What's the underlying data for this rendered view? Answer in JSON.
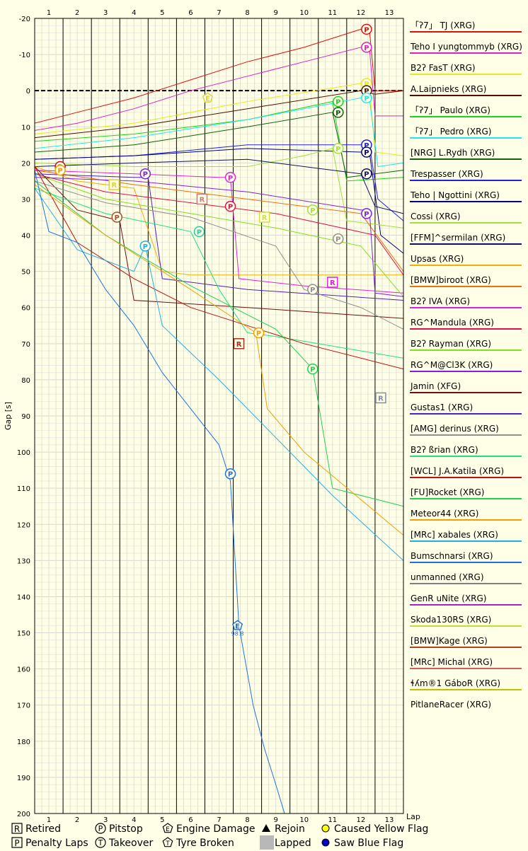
{
  "chart_data": {
    "type": "line",
    "ylabel": "Gap [s]",
    "xlabel": "Lap",
    "x_ticks": [
      1,
      2,
      3,
      4,
      5,
      6,
      7,
      8,
      9,
      10,
      11,
      12,
      13
    ],
    "ylim": [
      -20,
      200
    ],
    "y_ticks": [
      -20,
      -10,
      0,
      10,
      20,
      30,
      40,
      50,
      60,
      70,
      80,
      90,
      100,
      110,
      120,
      130,
      140,
      150,
      160,
      170,
      180,
      190,
      200
    ],
    "reference_line": 0,
    "grid": true,
    "series": [
      {
        "name": "「ʔ7」 TJ (XRG)",
        "color": "#e01010",
        "x": [
          0.5,
          2,
          4,
          6,
          8,
          10,
          12,
          12.3,
          12.5,
          13.5
        ],
        "y": [
          9,
          6,
          2,
          -3,
          -8,
          -12,
          -17,
          -17,
          0,
          0
        ]
      },
      {
        "name": "Teho I yungtommyb (XRG)",
        "color": "#e020c0",
        "x": [
          0.5,
          2,
          4,
          6,
          8,
          10,
          12,
          12.3,
          12.5,
          13.5
        ],
        "y": [
          11,
          9,
          5,
          0,
          -4,
          -8,
          -12,
          -12,
          7,
          7
        ]
      },
      {
        "name": "B2ʔ FasT (XRG)",
        "color": "#e8e820",
        "x": [
          0.5,
          4,
          8,
          12,
          12.3,
          12.5,
          13.5
        ],
        "y": [
          12,
          9,
          3,
          -2,
          -2,
          17,
          18
        ]
      },
      {
        "name": "A.Laipnieks (XRG)",
        "color": "#501000",
        "x": [
          0.5,
          4,
          8,
          12,
          12.5,
          13.5
        ],
        "y": [
          13,
          10,
          5,
          0,
          1,
          0
        ]
      },
      {
        "name": "「ʔ7」 Paulo (XRG)",
        "color": "#20d020",
        "x": [
          0.5,
          4,
          8,
          11,
          11.5,
          13.5
        ],
        "y": [
          14,
          12,
          8,
          3,
          25,
          24
        ]
      },
      {
        "name": "「ʔ7」 Pedro (XRG)",
        "color": "#20e8e8",
        "x": [
          0.5,
          4,
          8,
          12,
          12.3,
          12.6,
          13.5
        ],
        "y": [
          16,
          13,
          8,
          2,
          2,
          21,
          20
        ]
      },
      {
        "name": "[NRG] L.Rydh (XRG)",
        "color": "#106010",
        "x": [
          0.5,
          4,
          8,
          11,
          11.5,
          13.5
        ],
        "y": [
          17,
          15,
          10,
          6,
          24,
          22
        ]
      },
      {
        "name": "Trespasser (XRG)",
        "color": "#2020e0",
        "x": [
          0.5,
          4,
          8,
          12,
          12.3,
          12.6,
          13.5
        ],
        "y": [
          19,
          18,
          15,
          15,
          15,
          30,
          36
        ]
      },
      {
        "name": "Teho | Ngottini (XRG)",
        "color": "#000080",
        "x": [
          0.5,
          4,
          8,
          12,
          12.3,
          12.7,
          13.5
        ],
        "y": [
          19,
          18,
          16,
          17,
          17,
          40,
          45
        ]
      },
      {
        "name": "Cossi (XRG)",
        "color": "#a0e040",
        "x": [
          0.5,
          4,
          8,
          10,
          11,
          11.5,
          13.5
        ],
        "y": [
          20,
          21,
          21,
          18,
          16,
          36,
          38
        ]
      },
      {
        "name": "[FFM]^sermilan (XRG)",
        "color": "#101060",
        "x": [
          0.5,
          4,
          8,
          12,
          12.5,
          13.5
        ],
        "y": [
          21,
          20,
          19,
          23,
          32,
          34
        ]
      },
      {
        "name": "Upsas (XRG)",
        "color": "#f0b000",
        "x": [
          0.5,
          2,
          4,
          5,
          6,
          8,
          13.5
        ],
        "y": [
          21,
          25,
          27,
          50,
          51,
          51,
          51
        ]
      },
      {
        "name": "[BMW]biroot (XRG)",
        "color": "#f07010",
        "x": [
          0.5,
          4,
          8,
          12,
          13.5
        ],
        "y": [
          22,
          26,
          30,
          34,
          50
        ]
      },
      {
        "name": "B2ʔ IVA (XRG)",
        "color": "#e020e0",
        "x": [
          0.5,
          4,
          7,
          7.4,
          7.7,
          10,
          13.5
        ],
        "y": [
          22,
          23,
          24,
          24,
          52,
          54,
          56
        ]
      },
      {
        "name": "RG^Mandula (XRG)",
        "color": "#e01050",
        "x": [
          0.5,
          3,
          6,
          9,
          12.5,
          13.5
        ],
        "y": [
          23,
          28,
          31,
          34,
          40,
          51
        ]
      },
      {
        "name": "B2ʔ Rayman (XRG)",
        "color": "#80e020",
        "x": [
          0.5,
          3,
          6,
          9,
          12,
          13.5
        ],
        "y": [
          23,
          30,
          34,
          38,
          43,
          57
        ]
      },
      {
        "name": "RG^M@Cl3K (XRG)",
        "color": "#8020e0",
        "x": [
          0.5,
          4,
          8,
          12,
          12.3,
          12.5,
          13.5
        ],
        "y": [
          24,
          25,
          28,
          33,
          33,
          56,
          57
        ]
      },
      {
        "name": "Jamin (XFG)",
        "color": "#701010",
        "x": [
          0.5,
          2,
          3,
          3.5,
          4,
          8,
          13.5
        ],
        "y": [
          21,
          33,
          35,
          36,
          58,
          60,
          63
        ]
      },
      {
        "name": "Gustas1 (XRG)",
        "color": "#5020c0",
        "x": [
          0.5,
          4,
          4.5,
          5,
          8,
          13.5
        ],
        "y": [
          23,
          24,
          24,
          52,
          55,
          58
        ]
      },
      {
        "name": "[AMG] derinus (XRG)",
        "color": "#909090",
        "x": [
          0.5,
          3,
          6,
          9,
          10,
          12,
          13.5
        ],
        "y": [
          25,
          31,
          35,
          43,
          55,
          60,
          66
        ]
      },
      {
        "name": "B2ʔ ßrian (XRG)",
        "color": "#20e080",
        "x": [
          0.5,
          3,
          6,
          7,
          8,
          9,
          13.5
        ],
        "y": [
          27,
          34,
          39,
          55,
          67,
          68,
          74
        ]
      },
      {
        "name": "[WCL] J.A.Katila (XRG)",
        "color": "#c01010",
        "x": [
          0.5,
          2,
          4,
          6,
          8,
          10,
          13.5
        ],
        "y": [
          21,
          42,
          52,
          60,
          65,
          70,
          77
        ]
      },
      {
        "name": "[FU]Rocket (XRG)",
        "color": "#20d050",
        "x": [
          0.5,
          3,
          6,
          9,
          10.3,
          11,
          13.5
        ],
        "y": [
          25,
          40,
          54,
          66,
          77,
          110,
          115
        ]
      },
      {
        "name": "Meteor44 (XRG)",
        "color": "#f0a000",
        "x": [
          0.5,
          3,
          6,
          8.3,
          8.7,
          10,
          13.5
        ],
        "y": [
          26,
          40,
          55,
          67,
          88,
          100,
          123
        ]
      },
      {
        "name": "[MRc] xabales (XRG)",
        "color": "#20b0e0",
        "x": [
          0.5,
          2,
          4,
          4.4,
          5,
          7,
          9,
          11,
          13.5
        ],
        "y": [
          27,
          44,
          50,
          43,
          65,
          80,
          96,
          112,
          130
        ]
      },
      {
        "name": "Bumschnarsi (XRG)",
        "color": "#2070e0",
        "x": [
          0.5,
          1,
          2,
          3,
          4,
          5,
          6,
          7,
          7.4,
          7.7,
          8.2,
          8.6,
          9,
          9.5
        ],
        "y": [
          22,
          39,
          42,
          55,
          65,
          78,
          88,
          98,
          108,
          148,
          170,
          182,
          192,
          205
        ]
      }
    ],
    "legend_extra": [
      "unmanned (XRG)",
      "GenR uNite (XRG)",
      "Skoda130RS (XRG)",
      "[BMW]Kage (XRG)",
      "[MRc] Michal (XRG)",
      "ɬʎm®1 GáboR (XRG)",
      "PitlaneRacer (XRG)"
    ],
    "legend_extra_colors": [
      "#808080",
      "#b020c0",
      "#c0e030",
      "#b04020",
      "#d06060",
      "#c0c000",
      ""
    ],
    "markers": [
      {
        "type": "P",
        "x": 12.2,
        "y": -17,
        "color": "#e01010"
      },
      {
        "type": "P",
        "x": 12.2,
        "y": -12,
        "color": "#e020c0"
      },
      {
        "type": "P",
        "x": 12.2,
        "y": -2,
        "color": "#e8e820"
      },
      {
        "type": "P",
        "x": 12.2,
        "y": 0,
        "color": "#501000"
      },
      {
        "type": "P",
        "x": 12.2,
        "y": 2,
        "color": "#20e8e8"
      },
      {
        "type": "P",
        "x": 11.2,
        "y": 3,
        "color": "#20d020"
      },
      {
        "type": "P",
        "x": 11.2,
        "y": 6,
        "color": "#106010"
      },
      {
        "type": "P",
        "x": 11.2,
        "y": 16,
        "color": "#a0e040"
      },
      {
        "type": "P",
        "x": 12.2,
        "y": 15,
        "color": "#2020e0"
      },
      {
        "type": "P",
        "x": 12.2,
        "y": 17,
        "color": "#000080"
      },
      {
        "type": "P",
        "x": 12.2,
        "y": 23,
        "color": "#101060"
      },
      {
        "type": "P",
        "x": 12.2,
        "y": 34,
        "color": "#8020e0"
      },
      {
        "type": "P",
        "x": 11.2,
        "y": 41,
        "color": "#909090"
      },
      {
        "type": "P",
        "x": 10.3,
        "y": 33,
        "color": "#a0e040"
      },
      {
        "type": "P",
        "x": 10.3,
        "y": 55,
        "color": "#909090"
      },
      {
        "type": "P",
        "x": 10.3,
        "y": 77,
        "color": "#20d050"
      },
      {
        "type": "P",
        "x": 8.4,
        "y": 67,
        "color": "#f0a000"
      },
      {
        "type": "P",
        "x": 7.4,
        "y": 24,
        "color": "#e020e0"
      },
      {
        "type": "P",
        "x": 7.4,
        "y": 32,
        "color": "#e01050"
      },
      {
        "type": "P",
        "x": 7.4,
        "y": 106,
        "color": "#2070e0"
      },
      {
        "type": "P",
        "x": 6.3,
        "y": 39,
        "color": "#20d0a0"
      },
      {
        "type": "P",
        "x": 4.4,
        "y": 23,
        "color": "#8020e0"
      },
      {
        "type": "P",
        "x": 4.4,
        "y": 43,
        "color": "#20b0e0"
      },
      {
        "type": "P",
        "x": 3.4,
        "y": 35,
        "color": "#a05030"
      },
      {
        "type": "P",
        "x": 1.4,
        "y": 21,
        "color": "#c01010"
      },
      {
        "type": "P",
        "x": 1.4,
        "y": 22,
        "color": "#f0a000"
      },
      {
        "type": "R",
        "x": 3.3,
        "y": 26,
        "color": "#e0d040"
      },
      {
        "type": "R",
        "x": 6.4,
        "y": 30,
        "color": "#c08080"
      },
      {
        "type": "R",
        "x": 8.6,
        "y": 35,
        "color": "#d0e040"
      },
      {
        "type": "R",
        "x": 7.7,
        "y": 70,
        "color": "#a03020"
      },
      {
        "type": "R",
        "x": 11.0,
        "y": 53,
        "color": "#e020e0"
      },
      {
        "type": "R",
        "x": 12.7,
        "y": 85,
        "color": "#8090a0"
      },
      {
        "type": "E",
        "x": 6.6,
        "y": 2,
        "color": "#e0d040",
        "label": "E"
      },
      {
        "type": "E",
        "x": 7.65,
        "y": 148,
        "color": "#2070e0",
        "label": "98.8"
      }
    ]
  },
  "footer_legend": [
    {
      "symbol": "R",
      "shape": "square",
      "label": "Retired"
    },
    {
      "symbol": "P",
      "shape": "square",
      "label": "Penalty Laps"
    },
    {
      "symbol": "P",
      "shape": "circle",
      "label": "Pitstop"
    },
    {
      "symbol": "T",
      "shape": "circle",
      "label": "Takeover"
    },
    {
      "symbol": "E",
      "shape": "pentagon",
      "label": "Engine Damage"
    },
    {
      "symbol": "T",
      "shape": "pentagon",
      "label": "Tyre Broken"
    },
    {
      "symbol": "",
      "shape": "triangle",
      "label": "Rejoin"
    },
    {
      "symbol": "",
      "shape": "graybox",
      "label": "Lapped"
    },
    {
      "symbol": "",
      "shape": "yellowdot",
      "label": "Caused Yellow Flag"
    },
    {
      "symbol": "",
      "shape": "bluedot",
      "label": "Saw Blue Flag"
    }
  ]
}
